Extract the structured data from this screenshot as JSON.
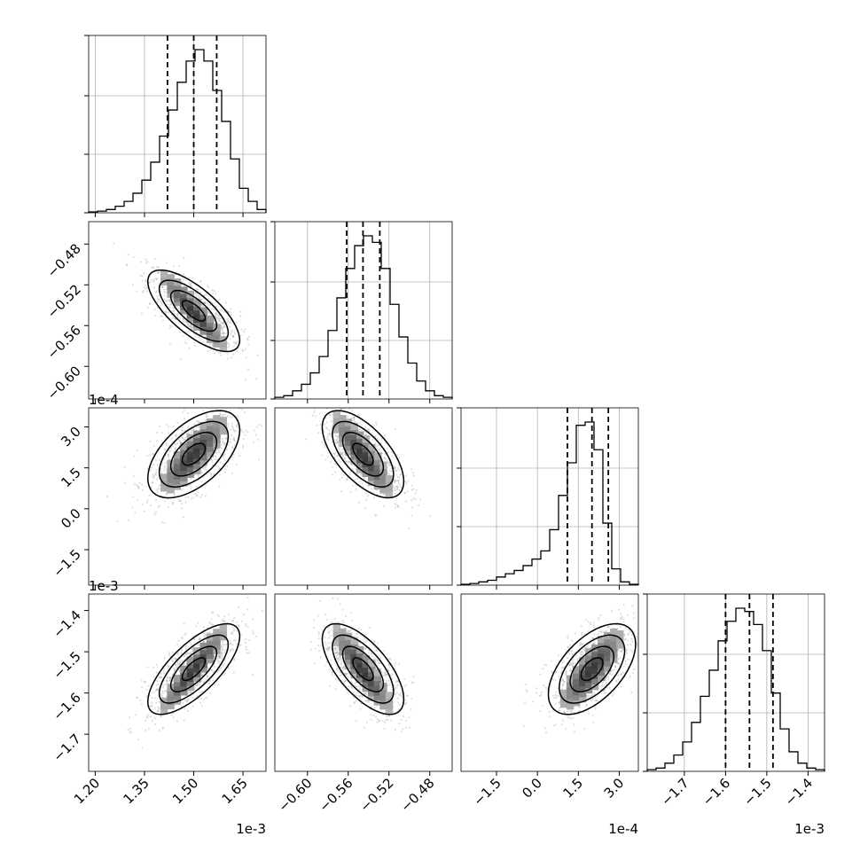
{
  "chart_data": {
    "type": "corner",
    "grid": true,
    "parameters": [
      {
        "range": [
          1.18,
          1.72
        ],
        "ticks": [
          1.2,
          1.35,
          1.5,
          1.65
        ],
        "tick_labels": [
          "1.20",
          "1.35",
          "1.50",
          "1.65"
        ],
        "offset": "1e-3"
      },
      {
        "range": [
          -0.632,
          -0.458
        ],
        "ticks": [
          -0.6,
          -0.56,
          -0.52,
          -0.48
        ],
        "tick_labels": [
          "−0.60",
          "−0.56",
          "−0.52",
          "−0.48"
        ],
        "offset": ""
      },
      {
        "range": [
          -2.8,
          3.7
        ],
        "ticks": [
          -1.5,
          0.0,
          1.5,
          3.0
        ],
        "tick_labels": [
          "−1.5",
          "0.0",
          "1.5",
          "3.0"
        ],
        "offset": "1e-4"
      },
      {
        "range": [
          -1.79,
          -1.36
        ],
        "ticks": [
          -1.7,
          -1.6,
          -1.5,
          -1.4
        ],
        "tick_labels": [
          "−1.7",
          "−1.6",
          "−1.5",
          "−1.4"
        ],
        "offset": "1e-3"
      }
    ],
    "histograms": [
      {
        "centers": [
          1.5,
          1.5
        ],
        "heights": [],
        "quantiles": [
          1.42,
          1.5,
          1.57
        ]
      },
      {
        "quantiles": [
          -0.5615,
          -0.5455,
          -0.529
        ]
      },
      {
        "quantiles": [
          1.1,
          2.0,
          2.6
        ]
      },
      {
        "quantiles": [
          -1.6,
          -1.542,
          -1.485
        ]
      }
    ],
    "hist_counts": [
      [
        0.005,
        0.01,
        0.02,
        0.04,
        0.07,
        0.12,
        0.2,
        0.31,
        0.47,
        0.63,
        0.8,
        0.93,
        1.0,
        0.93,
        0.75,
        0.56,
        0.33,
        0.15,
        0.07,
        0.02
      ],
      [
        0.01,
        0.02,
        0.05,
        0.09,
        0.16,
        0.26,
        0.42,
        0.62,
        0.8,
        0.94,
        1.0,
        0.96,
        0.8,
        0.58,
        0.38,
        0.22,
        0.11,
        0.05,
        0.02,
        0.01
      ],
      [
        0.005,
        0.01,
        0.02,
        0.03,
        0.05,
        0.07,
        0.09,
        0.12,
        0.16,
        0.21,
        0.34,
        0.55,
        0.75,
        0.98,
        1.0,
        0.83,
        0.38,
        0.1,
        0.02,
        0.005
      ],
      [
        0.01,
        0.02,
        0.05,
        0.1,
        0.18,
        0.3,
        0.46,
        0.62,
        0.8,
        0.92,
        1.0,
        0.98,
        0.9,
        0.74,
        0.48,
        0.26,
        0.12,
        0.05,
        0.02,
        0.01
      ]
    ],
    "correlations": {
      "1,0": -0.72,
      "2,0": 0.55,
      "2,1": -0.62,
      "3,0": 0.72,
      "3,1": -0.66,
      "3,2": 0.55
    },
    "means": [
      1.5,
      -0.5455,
      2.0,
      -1.542
    ],
    "sigmas": [
      0.07,
      0.02,
      0.8,
      0.055
    ],
    "contour_levels": [
      0.5,
      1.0,
      1.5,
      2.0
    ]
  }
}
